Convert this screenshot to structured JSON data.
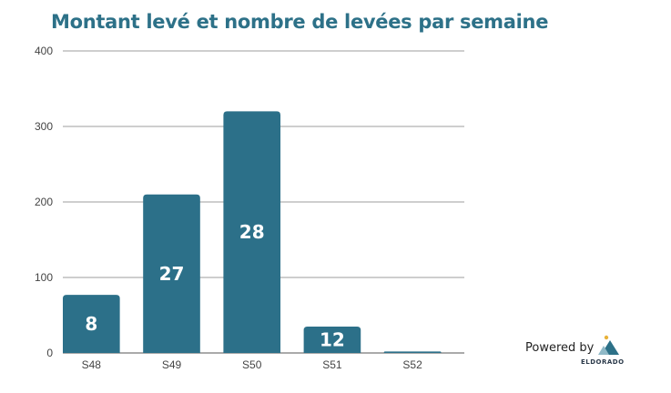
{
  "chart_data": {
    "type": "bar",
    "title": "Montant levé et nombre de levées par semaine",
    "categories": [
      "S48",
      "S49",
      "S50",
      "S51",
      "S52"
    ],
    "values": [
      77,
      210,
      320,
      35,
      2
    ],
    "data_labels": [
      "8",
      "27",
      "28",
      "12",
      ""
    ],
    "ylim": [
      0,
      400
    ],
    "yticks": [
      0,
      100,
      200,
      300,
      400
    ],
    "grid": true,
    "bar_color": "#2c7089",
    "label_color": "#ffffff"
  },
  "branding": {
    "powered_by": "Powered by",
    "logo_text": "ELDORADO"
  }
}
